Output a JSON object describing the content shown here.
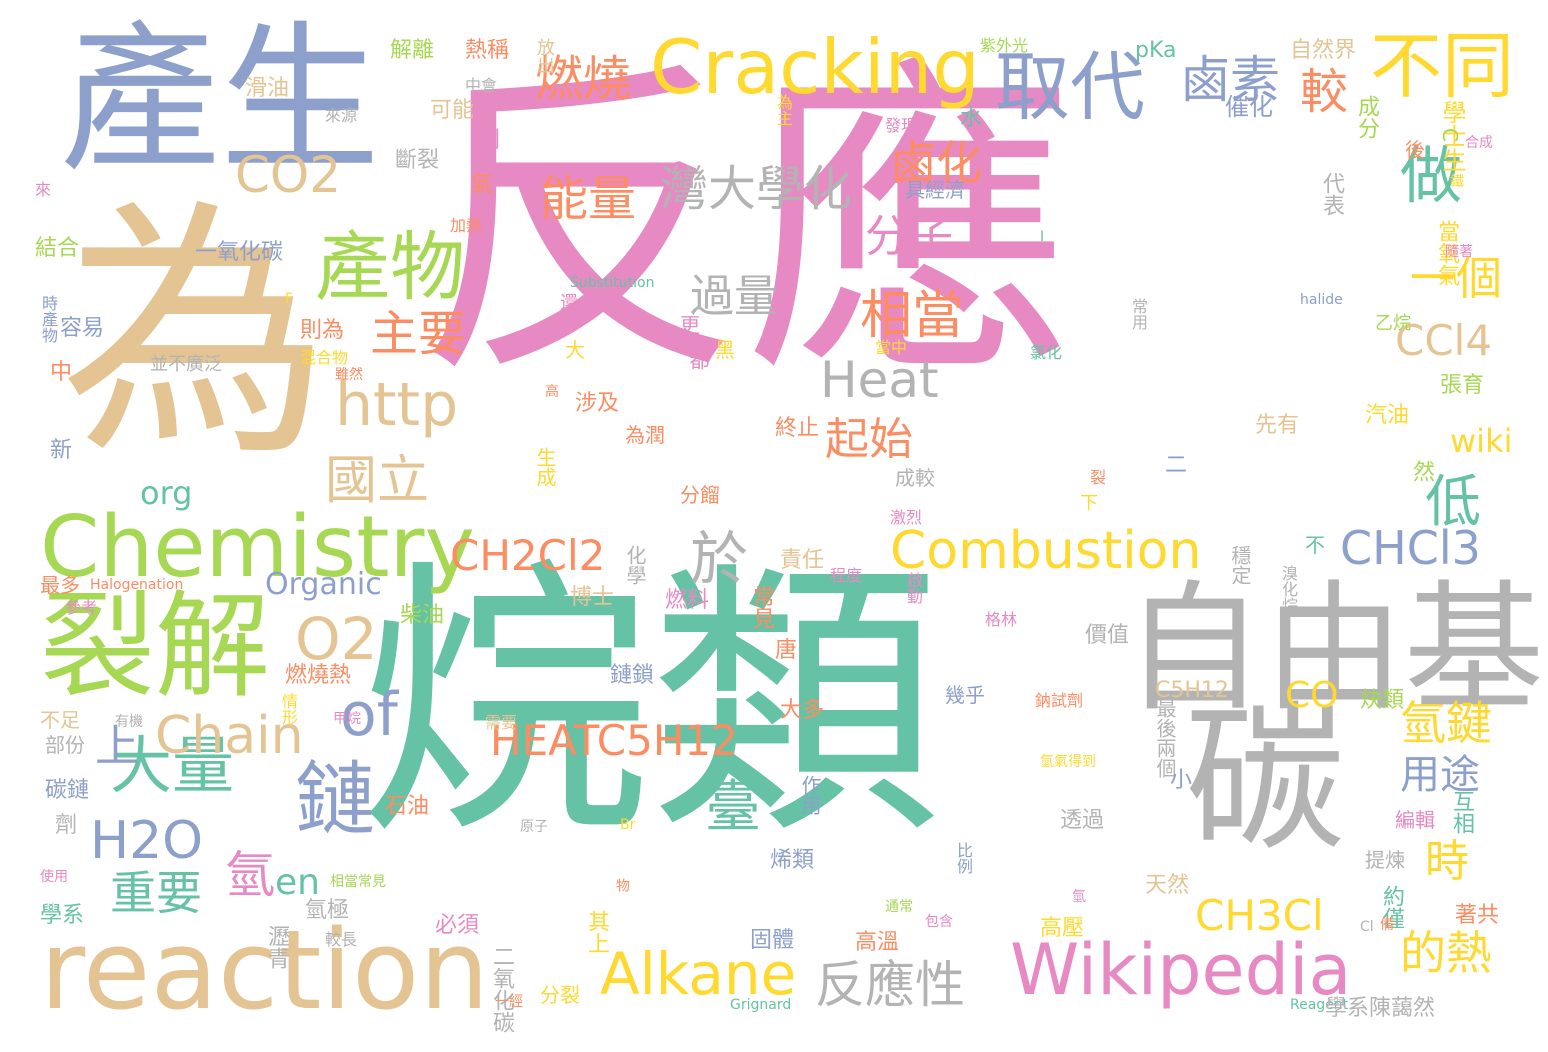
{
  "palette": {
    "pink": "#e78ac3",
    "green": "#66c2a5",
    "blue": "#8da0cb",
    "tan": "#e5c494",
    "lime": "#a6d854",
    "gray": "#b3b3b3",
    "orange": "#fc8d62",
    "yellow": "#ffd92f"
  },
  "words": [
    {
      "text": "反應",
      "color": "pink"
    },
    {
      "text": "烷類",
      "color": "green"
    },
    {
      "text": "產生",
      "color": "blue"
    },
    {
      "text": "為",
      "color": "tan"
    },
    {
      "text": "自由基",
      "color": "gray"
    },
    {
      "text": "碳",
      "color": "gray"
    },
    {
      "text": "reaction",
      "color": "tan"
    },
    {
      "text": "Chemistry",
      "color": "lime"
    },
    {
      "text": "裂解",
      "color": "lime"
    },
    {
      "text": "Cracking",
      "color": "yellow"
    },
    {
      "text": "取代",
      "color": "blue"
    },
    {
      "text": "不同",
      "color": "yellow"
    },
    {
      "text": "鹵素",
      "color": "blue"
    },
    {
      "text": "燃燒",
      "color": "orange"
    },
    {
      "text": "較",
      "color": "orange"
    },
    {
      "text": "產物",
      "color": "lime"
    },
    {
      "text": "能量",
      "color": "orange"
    },
    {
      "text": "灣大學化",
      "color": "gray"
    },
    {
      "text": "鹵化",
      "color": "orange"
    },
    {
      "text": "做",
      "color": "green"
    },
    {
      "text": "CO2",
      "color": "tan"
    },
    {
      "text": "http",
      "color": "tan"
    },
    {
      "text": "國立",
      "color": "tan"
    },
    {
      "text": "主要",
      "color": "orange"
    },
    {
      "text": "相當",
      "color": "orange"
    },
    {
      "text": "過量",
      "color": "gray"
    },
    {
      "text": "分子",
      "color": "pink"
    },
    {
      "text": "Heat",
      "color": "gray"
    },
    {
      "text": "起始",
      "color": "orange"
    },
    {
      "text": "一個",
      "color": "yellow"
    },
    {
      "text": "CCl4",
      "color": "tan"
    },
    {
      "text": "Wikipedia",
      "color": "pink"
    },
    {
      "text": "Alkane",
      "color": "yellow"
    },
    {
      "text": "反應性",
      "color": "gray"
    },
    {
      "text": "Combustion",
      "color": "yellow"
    },
    {
      "text": "CH2Cl2",
      "color": "orange"
    },
    {
      "text": "CHCl3",
      "color": "blue"
    },
    {
      "text": "HEATC5H12",
      "color": "orange"
    },
    {
      "text": "大量",
      "color": "green"
    },
    {
      "text": "鏈",
      "color": "blue"
    },
    {
      "text": "of",
      "color": "blue"
    },
    {
      "text": "O2",
      "color": "tan"
    },
    {
      "text": "Chain",
      "color": "tan"
    },
    {
      "text": "H2O",
      "color": "blue"
    },
    {
      "text": "重要",
      "color": "green"
    },
    {
      "text": "於",
      "color": "gray"
    },
    {
      "text": "氫鍵",
      "color": "yellow"
    },
    {
      "text": "用途",
      "color": "blue"
    },
    {
      "text": "時",
      "color": "yellow"
    },
    {
      "text": "的熱",
      "color": "yellow"
    },
    {
      "text": "CH3Cl",
      "color": "yellow"
    },
    {
      "text": "低",
      "color": "green"
    },
    {
      "text": "wiki",
      "color": "yellow"
    },
    {
      "text": "Organic",
      "color": "blue"
    },
    {
      "text": "CO",
      "color": "yellow"
    },
    {
      "text": "臺",
      "color": "green"
    },
    {
      "text": "氫",
      "color": "pink"
    },
    {
      "text": "en",
      "color": "green"
    },
    {
      "text": "上",
      "color": "blue"
    },
    {
      "text": "org",
      "color": "green"
    },
    {
      "text": "學士生",
      "color": "yellow"
    },
    {
      "text": "催化",
      "color": "blue"
    },
    {
      "text": "成分",
      "color": "lime"
    },
    {
      "text": "pKa",
      "color": "green"
    },
    {
      "text": "熱稱",
      "color": "orange"
    },
    {
      "text": "解離",
      "color": "lime"
    },
    {
      "text": "自然界",
      "color": "tan"
    },
    {
      "text": "放出",
      "color": "tan"
    },
    {
      "text": "紫外光",
      "color": "lime"
    },
    {
      "text": "滑油",
      "color": "tan"
    },
    {
      "text": "中會",
      "color": "gray"
    },
    {
      "text": "可能",
      "color": "tan"
    },
    {
      "text": "為主",
      "color": "yellow"
    },
    {
      "text": "來源",
      "color": "gray"
    },
    {
      "text": "發現",
      "color": "pink"
    },
    {
      "text": "水",
      "color": "green"
    },
    {
      "text": "斷裂",
      "color": "gray"
    },
    {
      "text": "則",
      "color": "pink"
    },
    {
      "text": "代表",
      "color": "gray"
    },
    {
      "text": "具經濟",
      "color": "blue"
    },
    {
      "text": "氣",
      "color": "orange"
    },
    {
      "text": "來",
      "color": "pink"
    },
    {
      "text": "加熱",
      "color": "orange"
    },
    {
      "text": "結合",
      "color": "lime"
    },
    {
      "text": "一氧化碳",
      "color": "blue"
    },
    {
      "text": "當氧氣",
      "color": "yellow"
    },
    {
      "text": "時產物",
      "color": "blue"
    },
    {
      "text": "容易",
      "color": "blue"
    },
    {
      "text": "則為",
      "color": "orange"
    },
    {
      "text": "混合物",
      "color": "yellow"
    },
    {
      "text": "並不廣泛",
      "color": "gray"
    },
    {
      "text": "中",
      "color": "orange"
    },
    {
      "text": "新",
      "color": "blue"
    },
    {
      "text": "Substitution",
      "color": "green"
    },
    {
      "text": "還",
      "color": "pink"
    },
    {
      "text": "更",
      "color": "pink"
    },
    {
      "text": "大",
      "color": "yellow"
    },
    {
      "text": "都",
      "color": "pink"
    },
    {
      "text": "黑",
      "color": "yellow"
    },
    {
      "text": "當中",
      "color": "yellow"
    },
    {
      "text": "氯化",
      "color": "green"
    },
    {
      "text": "常用",
      "color": "gray"
    },
    {
      "text": "halide",
      "color": "blue"
    },
    {
      "text": "乙烷",
      "color": "lime"
    },
    {
      "text": "張育",
      "color": "lime"
    },
    {
      "text": "汽油",
      "color": "yellow"
    },
    {
      "text": "先有",
      "color": "tan"
    },
    {
      "text": "二",
      "color": "blue"
    },
    {
      "text": "然",
      "color": "lime"
    },
    {
      "text": "涉及",
      "color": "orange"
    },
    {
      "text": "為潤",
      "color": "orange"
    },
    {
      "text": "終止",
      "color": "orange"
    },
    {
      "text": "生成",
      "color": "yellow"
    },
    {
      "text": "高",
      "color": "orange"
    },
    {
      "text": "成較",
      "color": "gray"
    },
    {
      "text": "分餾",
      "color": "orange"
    },
    {
      "text": "激烈",
      "color": "pink"
    },
    {
      "text": "下",
      "color": "yellow"
    },
    {
      "text": "裂",
      "color": "orange"
    },
    {
      "text": "穩定",
      "color": "gray"
    },
    {
      "text": "不",
      "color": "green"
    },
    {
      "text": "化學",
      "color": "gray"
    },
    {
      "text": "責任",
      "color": "tan"
    },
    {
      "text": "程度",
      "color": "pink"
    },
    {
      "text": "溴化烷",
      "color": "gray"
    },
    {
      "text": "博士",
      "color": "tan"
    },
    {
      "text": "燃料",
      "color": "pink"
    },
    {
      "text": "常見",
      "color": "orange"
    },
    {
      "text": "最多",
      "color": "orange"
    },
    {
      "text": "Halogenation",
      "color": "orange"
    },
    {
      "text": "啟動",
      "color": "pink"
    },
    {
      "text": "參考",
      "color": "pink"
    },
    {
      "text": "柴油",
      "color": "lime"
    },
    {
      "text": "格林",
      "color": "pink"
    },
    {
      "text": "價值",
      "color": "gray"
    },
    {
      "text": "唐",
      "color": "orange"
    },
    {
      "text": "鏈鎖",
      "color": "blue"
    },
    {
      "text": "C5H12",
      "color": "tan"
    },
    {
      "text": "炔類",
      "color": "lime"
    },
    {
      "text": "燃燒熱",
      "color": "orange"
    },
    {
      "text": "情形",
      "color": "yellow"
    },
    {
      "text": "有機",
      "color": "gray"
    },
    {
      "text": "不足",
      "color": "tan"
    },
    {
      "text": "幾乎",
      "color": "blue"
    },
    {
      "text": "需要",
      "color": "tan"
    },
    {
      "text": "大多",
      "color": "orange"
    },
    {
      "text": "鈉試劑",
      "color": "orange"
    },
    {
      "text": "最後兩個",
      "color": "gray"
    },
    {
      "text": "甲烷",
      "color": "pink"
    },
    {
      "text": "部份",
      "color": "gray"
    },
    {
      "text": "作用",
      "color": "blue"
    },
    {
      "text": "氫氣得到",
      "color": "yellow"
    },
    {
      "text": "小",
      "color": "blue"
    },
    {
      "text": "互相",
      "color": "green"
    },
    {
      "text": "石油",
      "color": "orange"
    },
    {
      "text": "碳鏈",
      "color": "blue"
    },
    {
      "text": "原子",
      "color": "gray"
    },
    {
      "text": "Br",
      "color": "yellow"
    },
    {
      "text": "透過",
      "color": "gray"
    },
    {
      "text": "編輯",
      "color": "pink"
    },
    {
      "text": "劑",
      "color": "gray"
    },
    {
      "text": "比例",
      "color": "blue"
    },
    {
      "text": "烯類",
      "color": "blue"
    },
    {
      "text": "提煉",
      "color": "gray"
    },
    {
      "text": "使用",
      "color": "pink"
    },
    {
      "text": "相當常見",
      "color": "lime"
    },
    {
      "text": "物",
      "color": "orange"
    },
    {
      "text": "天然",
      "color": "tan"
    },
    {
      "text": "約僅",
      "color": "green"
    },
    {
      "text": "學系",
      "color": "green"
    },
    {
      "text": "氫極",
      "color": "gray"
    },
    {
      "text": "其上",
      "color": "yellow"
    },
    {
      "text": "必須",
      "color": "pink"
    },
    {
      "text": "通常",
      "color": "lime"
    },
    {
      "text": "包含",
      "color": "pink"
    },
    {
      "text": "高壓",
      "color": "yellow"
    },
    {
      "text": "著共",
      "color": "orange"
    },
    {
      "text": "瀝青",
      "color": "gray"
    },
    {
      "text": "較長",
      "color": "gray"
    },
    {
      "text": "固體",
      "color": "blue"
    },
    {
      "text": "高溫",
      "color": "orange"
    },
    {
      "text": "二氧化碳",
      "color": "gray"
    },
    {
      "text": "一經",
      "color": "orange"
    },
    {
      "text": "分裂",
      "color": "yellow"
    },
    {
      "text": "Grignard",
      "color": "green"
    },
    {
      "text": "Reagent",
      "color": "green"
    },
    {
      "text": "學系陳藹然",
      "color": "gray"
    },
    {
      "text": "後",
      "color": "orange"
    },
    {
      "text": "C",
      "color": "lime"
    },
    {
      "text": "合成",
      "color": "pink"
    },
    {
      "text": "Cl",
      "color": "gray"
    },
    {
      "text": "F",
      "color": "yellow"
    },
    {
      "text": "I",
      "color": "green"
    },
    {
      "text": "雖然",
      "color": "orange"
    },
    {
      "text": "隨著",
      "color": "pink"
    },
    {
      "text": "鐵",
      "color": "yellow"
    },
    {
      "text": "備",
      "color": "orange"
    },
    {
      "text": "氫",
      "color": "pink"
    }
  ]
}
